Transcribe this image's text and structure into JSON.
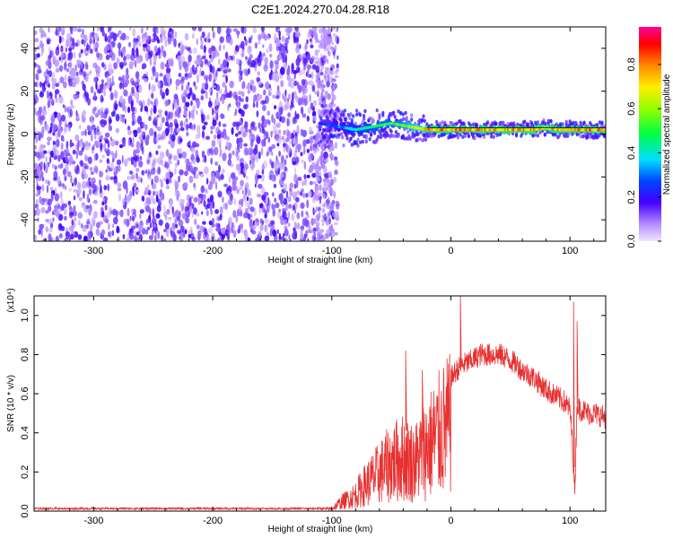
{
  "title": "C2E1.2024.270.04.28.R18",
  "colors": {
    "snr_line": "#e83030",
    "frame": "#000000",
    "noise_dark": "#6a00e8",
    "noise_light": "#e8d8ff"
  },
  "chart_data": [
    {
      "type": "heatmap",
      "title": "",
      "xlabel": "Height of straight line (km)",
      "ylabel": "Frequency (Hz)",
      "xlim": [
        -350,
        130
      ],
      "ylim": [
        -50,
        50
      ],
      "x_ticks": [
        -300,
        -200,
        -100,
        0,
        100
      ],
      "y_ticks": [
        -40,
        -20,
        0,
        20,
        40
      ],
      "grid": false,
      "noise_region_x": [
        -350,
        -105
      ],
      "signal_start_x": -110,
      "ridge": {
        "x": [
          -110,
          -100,
          -90,
          -80,
          -70,
          -60,
          -50,
          -40,
          -30,
          -20,
          -10,
          0,
          10,
          20,
          30,
          40,
          50,
          60,
          70,
          80,
          90,
          100,
          110,
          120,
          130
        ],
        "frequency": [
          5,
          4,
          3,
          2,
          3,
          4,
          5,
          4,
          3,
          2,
          2,
          2,
          2,
          2,
          2,
          2,
          2,
          2,
          2,
          3,
          2,
          2,
          2,
          2,
          2
        ],
        "amplitude": [
          0.25,
          0.3,
          0.35,
          0.45,
          0.5,
          0.55,
          0.55,
          0.6,
          0.7,
          0.8,
          0.85,
          0.85,
          0.85,
          0.85,
          0.85,
          0.85,
          0.85,
          0.85,
          0.85,
          0.8,
          0.85,
          0.85,
          0.85,
          0.85,
          0.85
        ]
      },
      "colorbar": {
        "label": "Normalized spectral amplitude",
        "range": [
          0,
          0.97
        ],
        "ticks": [
          "0.0",
          "0.2",
          "0.4",
          "0.6",
          "0.8"
        ],
        "tick_values": [
          0,
          0.2,
          0.4,
          0.6,
          0.8
        ]
      }
    },
    {
      "type": "line",
      "title": "",
      "xlabel": "Height of straight line (km)",
      "ylabel": "SNR (10 * v/v)",
      "scale_label": "(x10⁴)",
      "xlim": [
        -350,
        130
      ],
      "ylim": [
        0,
        1.1
      ],
      "x_ticks": [
        -300,
        -200,
        -100,
        0,
        100
      ],
      "y_ticks": [
        "0.0",
        "0.2",
        "0.4",
        "0.6",
        "0.8",
        "1.0"
      ],
      "y_tick_values": [
        0,
        0.2,
        0.4,
        0.6,
        0.8,
        1.0
      ],
      "grid": false,
      "series": [
        {
          "x": [
            -350,
            -300,
            -250,
            -200,
            -150,
            -110,
            -100,
            -95,
            -90,
            -85,
            -80,
            -75,
            -70,
            -65,
            -60,
            -55,
            -50,
            -45,
            -40,
            -35,
            -30,
            -25,
            -20,
            -15,
            -10,
            -5,
            0,
            5,
            10,
            15,
            20,
            25,
            30,
            35,
            40,
            45,
            50,
            55,
            60,
            65,
            70,
            75,
            80,
            85,
            90,
            95,
            100,
            102,
            104,
            106,
            108,
            110,
            115,
            120,
            125,
            130
          ],
          "y": [
            0.01,
            0.01,
            0.01,
            0.01,
            0.01,
            0.01,
            0.02,
            0.05,
            0.08,
            0.1,
            0.13,
            0.18,
            0.22,
            0.26,
            0.3,
            0.34,
            0.38,
            0.4,
            0.42,
            0.4,
            0.38,
            0.45,
            0.5,
            0.55,
            0.6,
            0.65,
            0.68,
            0.72,
            0.75,
            0.76,
            0.78,
            0.8,
            0.8,
            0.8,
            0.8,
            0.79,
            0.77,
            0.75,
            0.72,
            0.7,
            0.68,
            0.65,
            0.62,
            0.6,
            0.58,
            0.56,
            0.52,
            0.35,
            0.1,
            0.55,
            0.52,
            0.52,
            0.5,
            0.5,
            0.49,
            0.48
          ]
        }
      ],
      "spikes": [
        {
          "x": -38,
          "y": 0.82
        },
        {
          "x": -24,
          "y": 0.72
        },
        {
          "x": 8,
          "y": 1.1
        },
        {
          "x": 103,
          "y": 1.07
        },
        {
          "x": 106,
          "y": 0.97
        }
      ]
    }
  ]
}
